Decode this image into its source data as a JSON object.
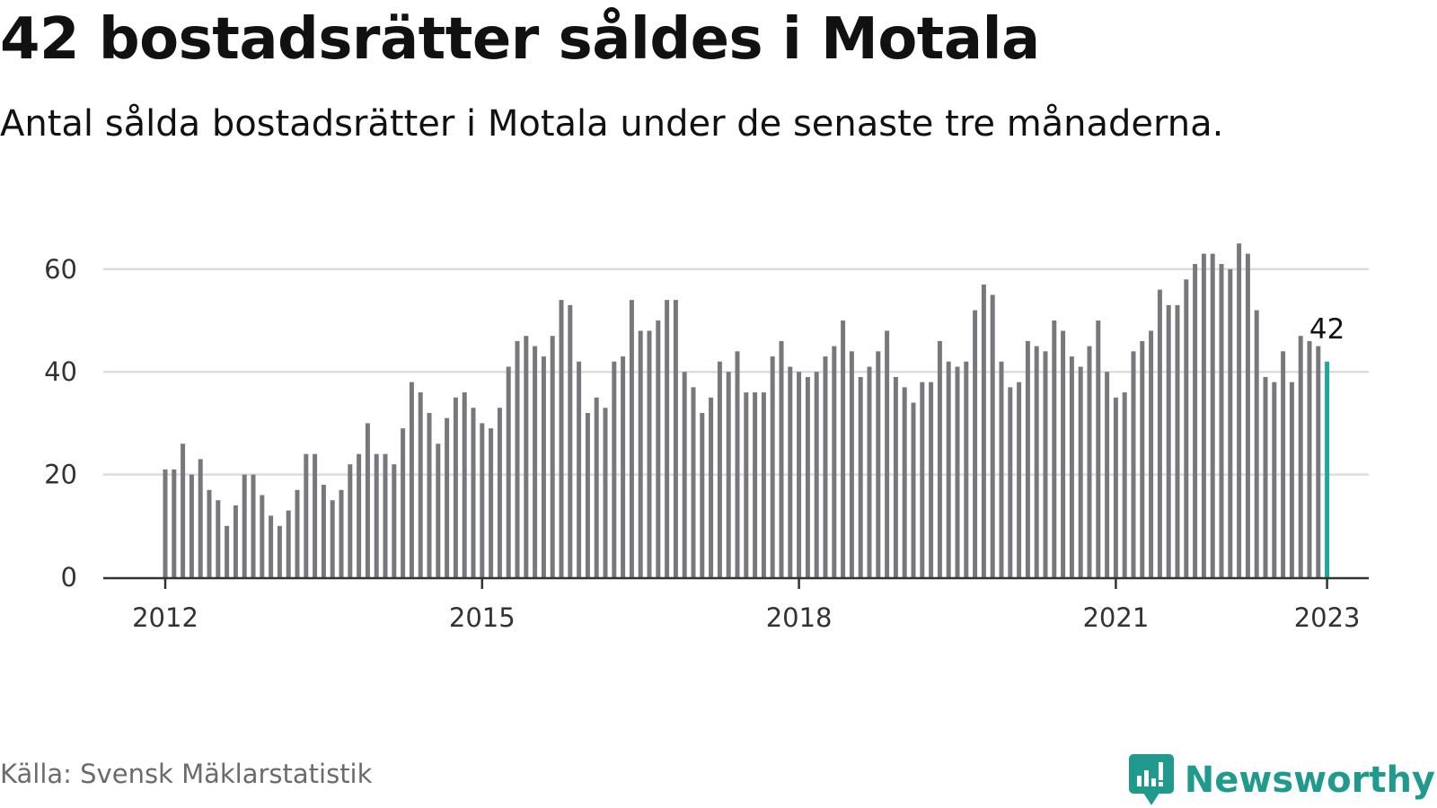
{
  "header": {
    "title": "42 bostadsrätter såldes i Motala",
    "subtitle": "Antal sålda bostadsrätter i Motala under de senaste tre månaderna."
  },
  "footer": {
    "source": "Källa: Svensk Mäklarstatistik",
    "brand": "Newsworthy",
    "brand_icon": "newsworthy-logo-icon"
  },
  "colors": {
    "bar": "#77777d",
    "highlight": "#1fa89a",
    "grid": "#dddddd",
    "axis": "#333333",
    "brand": "#1f9a8c"
  },
  "chart_data": {
    "type": "bar",
    "title": "",
    "xlabel": "",
    "ylabel": "",
    "x_start": "2012-01",
    "x_ticks": [
      "2012",
      "2015",
      "2018",
      "2021",
      "2023"
    ],
    "y_ticks": [
      0,
      20,
      40,
      60
    ],
    "ylim": [
      0,
      70
    ],
    "grid": true,
    "highlight_last": true,
    "annotation": "42",
    "series": [
      {
        "values": [
          21,
          21,
          26,
          20,
          23,
          17,
          15,
          10,
          14,
          20,
          20,
          16,
          12,
          10,
          13,
          17,
          24,
          24,
          18,
          15,
          17,
          22,
          24,
          30,
          24,
          24,
          22,
          29,
          38,
          36,
          32,
          26,
          31,
          35,
          36,
          33,
          30,
          29,
          33,
          41,
          46,
          47,
          45,
          43,
          47,
          54,
          53,
          42,
          32,
          35,
          33,
          42,
          43,
          54,
          48,
          48,
          50,
          54,
          54,
          40,
          37,
          32,
          35,
          42,
          40,
          44,
          36,
          36,
          36,
          43,
          46,
          41,
          40,
          39,
          40,
          43,
          45,
          50,
          44,
          39,
          41,
          44,
          48,
          39,
          37,
          34,
          38,
          38,
          46,
          42,
          41,
          42,
          52,
          57,
          55,
          42,
          37,
          38,
          46,
          45,
          44,
          50,
          48,
          43,
          41,
          45,
          50,
          40,
          35,
          36,
          44,
          46,
          48,
          56,
          53,
          53,
          58,
          61,
          63,
          63,
          61,
          60,
          65,
          63,
          52,
          39,
          38,
          44,
          38,
          47,
          46,
          45,
          42
        ]
      }
    ]
  }
}
